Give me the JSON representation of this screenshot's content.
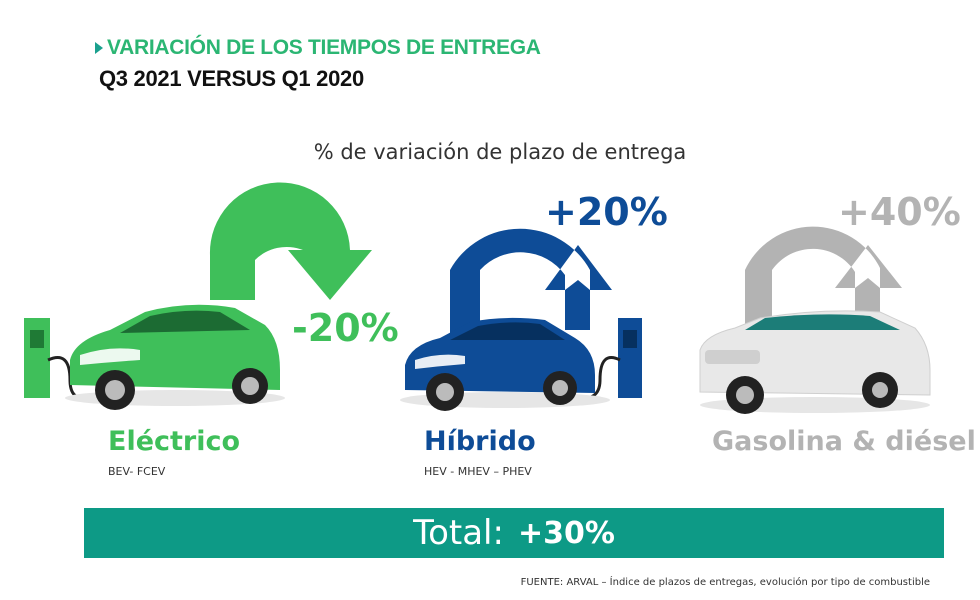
{
  "title": "VARIACIÓN DE LOS TIEMPOS DE ENTREGA",
  "subtitle_period": "Q3 2021 VERSUS Q1 2020",
  "chart_data": {
    "type": "bar",
    "title": "% de variación de plazo de entrega",
    "categories": [
      "Eléctrico",
      "Híbrido",
      "Gasolina & diésel"
    ],
    "category_subtitles": [
      "BEV- FCEV",
      "HEV - MHEV – PHEV",
      ""
    ],
    "values": [
      -20,
      20,
      40
    ],
    "value_labels": [
      "-20%",
      "+20%",
      "+40%"
    ],
    "unit": "%",
    "colors": [
      "#3fbf5a",
      "#0e4c97",
      "#b3b3b3"
    ],
    "total_label": "Total:",
    "total_value_label": "+30%",
    "total_value": 30
  },
  "colors": {
    "accent_green": "#2bb673",
    "teal": "#0d9a86",
    "electric": "#3fbf5a",
    "hybrid": "#0e4c97",
    "gasoline": "#b3b3b3"
  },
  "source": "FUENTE: ARVAL – Índice de plazos de  entregas, evolución por tipo de combustible",
  "icons": [
    "charger-icon",
    "car-icon",
    "arrow-down-icon",
    "arrow-up-icon"
  ]
}
